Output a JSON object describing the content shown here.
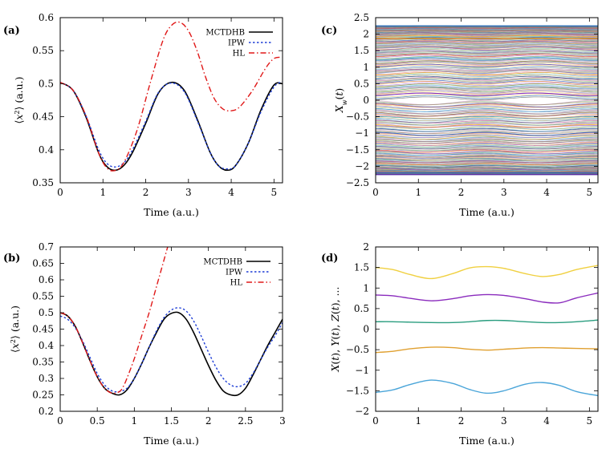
{
  "chart_data": [
    {
      "panel_label": "(a)",
      "type": "line",
      "xlabel": "Time (a.u.)",
      "ylabel": "⟨x²⟩ (a.u.)",
      "xlim": [
        0,
        5.2
      ],
      "ylim": [
        0.35,
        0.6
      ],
      "xticks": [
        0,
        1,
        2,
        3,
        4,
        5
      ],
      "xtick_labels": [
        "0",
        "1",
        "2",
        "3",
        "4",
        "5"
      ],
      "yticks": [
        0.35,
        0.4,
        0.45,
        0.5,
        0.55,
        0.6
      ],
      "ytick_labels": [
        "0.35",
        "0.4",
        "0.45",
        "0.5",
        "0.55",
        "0.6"
      ],
      "legend_position": "top-right",
      "series": [
        {
          "name": "MCTDHB",
          "color": "#000000",
          "dash": "solid",
          "x": [
            0,
            0.3,
            0.6,
            0.9,
            1.1,
            1.3,
            1.5,
            1.7,
            2.0,
            2.3,
            2.6,
            2.9,
            3.2,
            3.5,
            3.7,
            3.9,
            4.1,
            4.4,
            4.7,
            5.0,
            5.2
          ],
          "y": [
            0.502,
            0.49,
            0.45,
            0.395,
            0.374,
            0.369,
            0.377,
            0.397,
            0.44,
            0.486,
            0.502,
            0.49,
            0.447,
            0.397,
            0.376,
            0.369,
            0.376,
            0.41,
            0.461,
            0.498,
            0.5
          ]
        },
        {
          "name": "IPW",
          "color": "#1f3fd6",
          "dash": "dotted",
          "x": [
            0,
            0.3,
            0.6,
            0.9,
            1.1,
            1.3,
            1.5,
            1.7,
            2.0,
            2.3,
            2.6,
            2.9,
            3.2,
            3.5,
            3.7,
            3.9,
            4.1,
            4.4,
            4.7,
            5.0,
            5.2
          ],
          "y": [
            0.502,
            0.49,
            0.452,
            0.4,
            0.379,
            0.374,
            0.381,
            0.401,
            0.443,
            0.487,
            0.501,
            0.488,
            0.445,
            0.397,
            0.376,
            0.371,
            0.376,
            0.41,
            0.458,
            0.495,
            0.503
          ]
        },
        {
          "name": "HL",
          "color": "#e01818",
          "dash": "dashdot",
          "x": [
            0,
            0.3,
            0.6,
            0.9,
            1.1,
            1.3,
            1.5,
            1.8,
            2.1,
            2.4,
            2.6,
            2.8,
            3.0,
            3.2,
            3.4,
            3.6,
            3.8,
            4.0,
            4.2,
            4.5,
            4.8,
            5.0,
            5.2
          ],
          "y": [
            0.502,
            0.49,
            0.452,
            0.395,
            0.372,
            0.369,
            0.382,
            0.43,
            0.5,
            0.565,
            0.588,
            0.593,
            0.58,
            0.55,
            0.51,
            0.478,
            0.462,
            0.459,
            0.465,
            0.49,
            0.523,
            0.538,
            0.54
          ]
        }
      ]
    },
    {
      "panel_label": "(b)",
      "type": "line",
      "xlabel": "Time (a.u.)",
      "ylabel": "⟨x²⟩ (a.u.)",
      "xlim": [
        0,
        3
      ],
      "ylim": [
        0.2,
        0.7
      ],
      "xticks": [
        0,
        0.5,
        1,
        1.5,
        2,
        2.5,
        3
      ],
      "xtick_labels": [
        "0",
        "0.5",
        "1",
        "1.5",
        "2",
        "2.5",
        "3"
      ],
      "yticks": [
        0.2,
        0.25,
        0.3,
        0.35,
        0.4,
        0.45,
        0.5,
        0.55,
        0.6,
        0.65,
        0.7
      ],
      "ytick_labels": [
        "0.2",
        "0.25",
        "0.3",
        "0.35",
        "0.4",
        "0.45",
        "0.5",
        "0.55",
        "0.6",
        "0.65",
        "0.7"
      ],
      "legend_position": "top-right",
      "series": [
        {
          "name": "MCTDHB",
          "color": "#000000",
          "dash": "solid",
          "x": [
            0,
            0.1,
            0.2,
            0.3,
            0.4,
            0.5,
            0.6,
            0.7,
            0.8,
            0.9,
            1.0,
            1.1,
            1.2,
            1.3,
            1.4,
            1.5,
            1.6,
            1.7,
            1.8,
            1.9,
            2.0,
            2.1,
            2.2,
            2.3,
            2.4,
            2.5,
            2.6,
            2.7,
            2.8,
            2.9,
            3.0
          ],
          "y": [
            0.5,
            0.49,
            0.46,
            0.41,
            0.355,
            0.305,
            0.27,
            0.255,
            0.25,
            0.265,
            0.3,
            0.345,
            0.395,
            0.44,
            0.48,
            0.498,
            0.5,
            0.48,
            0.44,
            0.39,
            0.34,
            0.295,
            0.262,
            0.25,
            0.25,
            0.27,
            0.31,
            0.355,
            0.4,
            0.44,
            0.48
          ]
        },
        {
          "name": "IPW",
          "color": "#1f3fd6",
          "dash": "dotted",
          "x": [
            0,
            0.1,
            0.2,
            0.3,
            0.4,
            0.5,
            0.6,
            0.7,
            0.8,
            0.9,
            1.0,
            1.1,
            1.2,
            1.3,
            1.4,
            1.5,
            1.6,
            1.7,
            1.8,
            1.9,
            2.0,
            2.1,
            2.2,
            2.3,
            2.4,
            2.5,
            2.6,
            2.7,
            2.8,
            2.9,
            3.0
          ],
          "y": [
            0.49,
            0.48,
            0.455,
            0.415,
            0.365,
            0.315,
            0.28,
            0.262,
            0.26,
            0.27,
            0.3,
            0.345,
            0.395,
            0.445,
            0.485,
            0.508,
            0.515,
            0.505,
            0.475,
            0.43,
            0.38,
            0.335,
            0.3,
            0.28,
            0.275,
            0.285,
            0.315,
            0.355,
            0.395,
            0.43,
            0.47
          ]
        },
        {
          "name": "HL",
          "color": "#e01818",
          "dash": "dashdot",
          "x": [
            0,
            0.1,
            0.2,
            0.3,
            0.4,
            0.5,
            0.6,
            0.7,
            0.8,
            0.85,
            0.9,
            1.0,
            1.1,
            1.2,
            1.3,
            1.4,
            1.45
          ],
          "y": [
            0.5,
            0.49,
            0.46,
            0.41,
            0.355,
            0.305,
            0.27,
            0.255,
            0.26,
            0.275,
            0.3,
            0.36,
            0.43,
            0.5,
            0.58,
            0.66,
            0.7
          ]
        }
      ]
    },
    {
      "panel_label": "(c)",
      "type": "line",
      "xlabel": "Time (a.u.)",
      "ylabel": "X_w(t)",
      "xlim": [
        0,
        5.2
      ],
      "ylim": [
        -2.5,
        2.5
      ],
      "xticks": [
        0,
        1,
        2,
        3,
        4,
        5
      ],
      "xtick_labels": [
        "0",
        "1",
        "2",
        "3",
        "4",
        "5"
      ],
      "yticks": [
        -2.5,
        -2,
        -1.5,
        -1,
        -0.5,
        0,
        0.5,
        1,
        1.5,
        2,
        2.5
      ],
      "ytick_labels": [
        "−2.5",
        "−2",
        "−1.5",
        "−1",
        "−0.5",
        "0",
        "0.5",
        "1",
        "1.5",
        "2",
        "2.5"
      ],
      "description_series": "many trajectories between -2.25 and 2.25",
      "ensemble": {
        "count": 260,
        "min": -2.25,
        "max": 2.25,
        "period": 2.6,
        "max_amplitude": 0.12
      },
      "series": [
        {
          "color": "#2a6db5",
          "x": [
            0,
            5.2
          ],
          "y": [
            2.25,
            2.25
          ]
        },
        {
          "color": "#e08a1e",
          "x": [
            0,
            5.2
          ],
          "y": [
            1.87,
            1.87
          ]
        },
        {
          "color": "#5a2ca0",
          "x": [
            0,
            5.2
          ],
          "y": [
            -2.25,
            -2.25
          ]
        },
        {
          "color": "#2a6db5",
          "x": [
            0,
            5.2
          ],
          "y": [
            -2.2,
            -2.2
          ]
        }
      ],
      "palette": [
        "#4aa5d9",
        "#e0a030",
        "#2a9d7f",
        "#8a2bbd",
        "#f0c020",
        "#d04040",
        "#3a66c0",
        "#9a6030",
        "#60b060",
        "#c060a0",
        "#808080",
        "#204080"
      ]
    },
    {
      "panel_label": "(d)",
      "type": "line",
      "xlabel": "Time (a.u.)",
      "ylabel": "X(t), Y(t), Z(t), ...",
      "xlim": [
        0,
        5.2
      ],
      "ylim": [
        -2,
        2
      ],
      "xticks": [
        0,
        1,
        2,
        3,
        4,
        5
      ],
      "xtick_labels": [
        "0",
        "1",
        "2",
        "3",
        "4",
        "5"
      ],
      "yticks": [
        -2,
        -1.5,
        -1,
        -0.5,
        0,
        0.5,
        1,
        1.5,
        2
      ],
      "ytick_labels": [
        "−2",
        "−1.5",
        "−1",
        "−0.5",
        "0",
        "0.5",
        "1",
        "1.5",
        "2"
      ],
      "series": [
        {
          "color": "#f0d040",
          "x": [
            0,
            0.4,
            0.8,
            1.3,
            1.8,
            2.2,
            2.6,
            3.0,
            3.5,
            3.9,
            4.3,
            4.7,
            5.2
          ],
          "y": [
            1.5,
            1.45,
            1.33,
            1.23,
            1.35,
            1.49,
            1.52,
            1.48,
            1.35,
            1.28,
            1.33,
            1.45,
            1.55
          ]
        },
        {
          "color": "#8a2bbd",
          "x": [
            0,
            0.4,
            0.8,
            1.3,
            1.8,
            2.2,
            2.6,
            3.0,
            3.5,
            3.9,
            4.3,
            4.7,
            5.2
          ],
          "y": [
            0.83,
            0.81,
            0.75,
            0.69,
            0.74,
            0.81,
            0.84,
            0.82,
            0.74,
            0.66,
            0.64,
            0.76,
            0.88
          ]
        },
        {
          "color": "#2a9d7f",
          "x": [
            0,
            0.4,
            0.8,
            1.3,
            1.8,
            2.2,
            2.6,
            3.0,
            3.5,
            3.9,
            4.3,
            4.7,
            5.2
          ],
          "y": [
            0.18,
            0.18,
            0.17,
            0.16,
            0.16,
            0.18,
            0.21,
            0.21,
            0.18,
            0.16,
            0.16,
            0.18,
            0.22
          ]
        },
        {
          "color": "#e0a030",
          "x": [
            0,
            0.4,
            0.8,
            1.3,
            1.8,
            2.2,
            2.6,
            3.0,
            3.5,
            3.9,
            4.3,
            4.7,
            5.2
          ],
          "y": [
            -0.57,
            -0.54,
            -0.48,
            -0.44,
            -0.45,
            -0.49,
            -0.51,
            -0.49,
            -0.46,
            -0.45,
            -0.46,
            -0.47,
            -0.48
          ]
        },
        {
          "color": "#4aa5d9",
          "x": [
            0,
            0.4,
            0.8,
            1.3,
            1.8,
            2.2,
            2.6,
            3.0,
            3.5,
            3.9,
            4.3,
            4.7,
            5.2
          ],
          "y": [
            -1.54,
            -1.48,
            -1.35,
            -1.24,
            -1.32,
            -1.47,
            -1.56,
            -1.5,
            -1.34,
            -1.3,
            -1.37,
            -1.52,
            -1.62
          ]
        }
      ]
    }
  ]
}
